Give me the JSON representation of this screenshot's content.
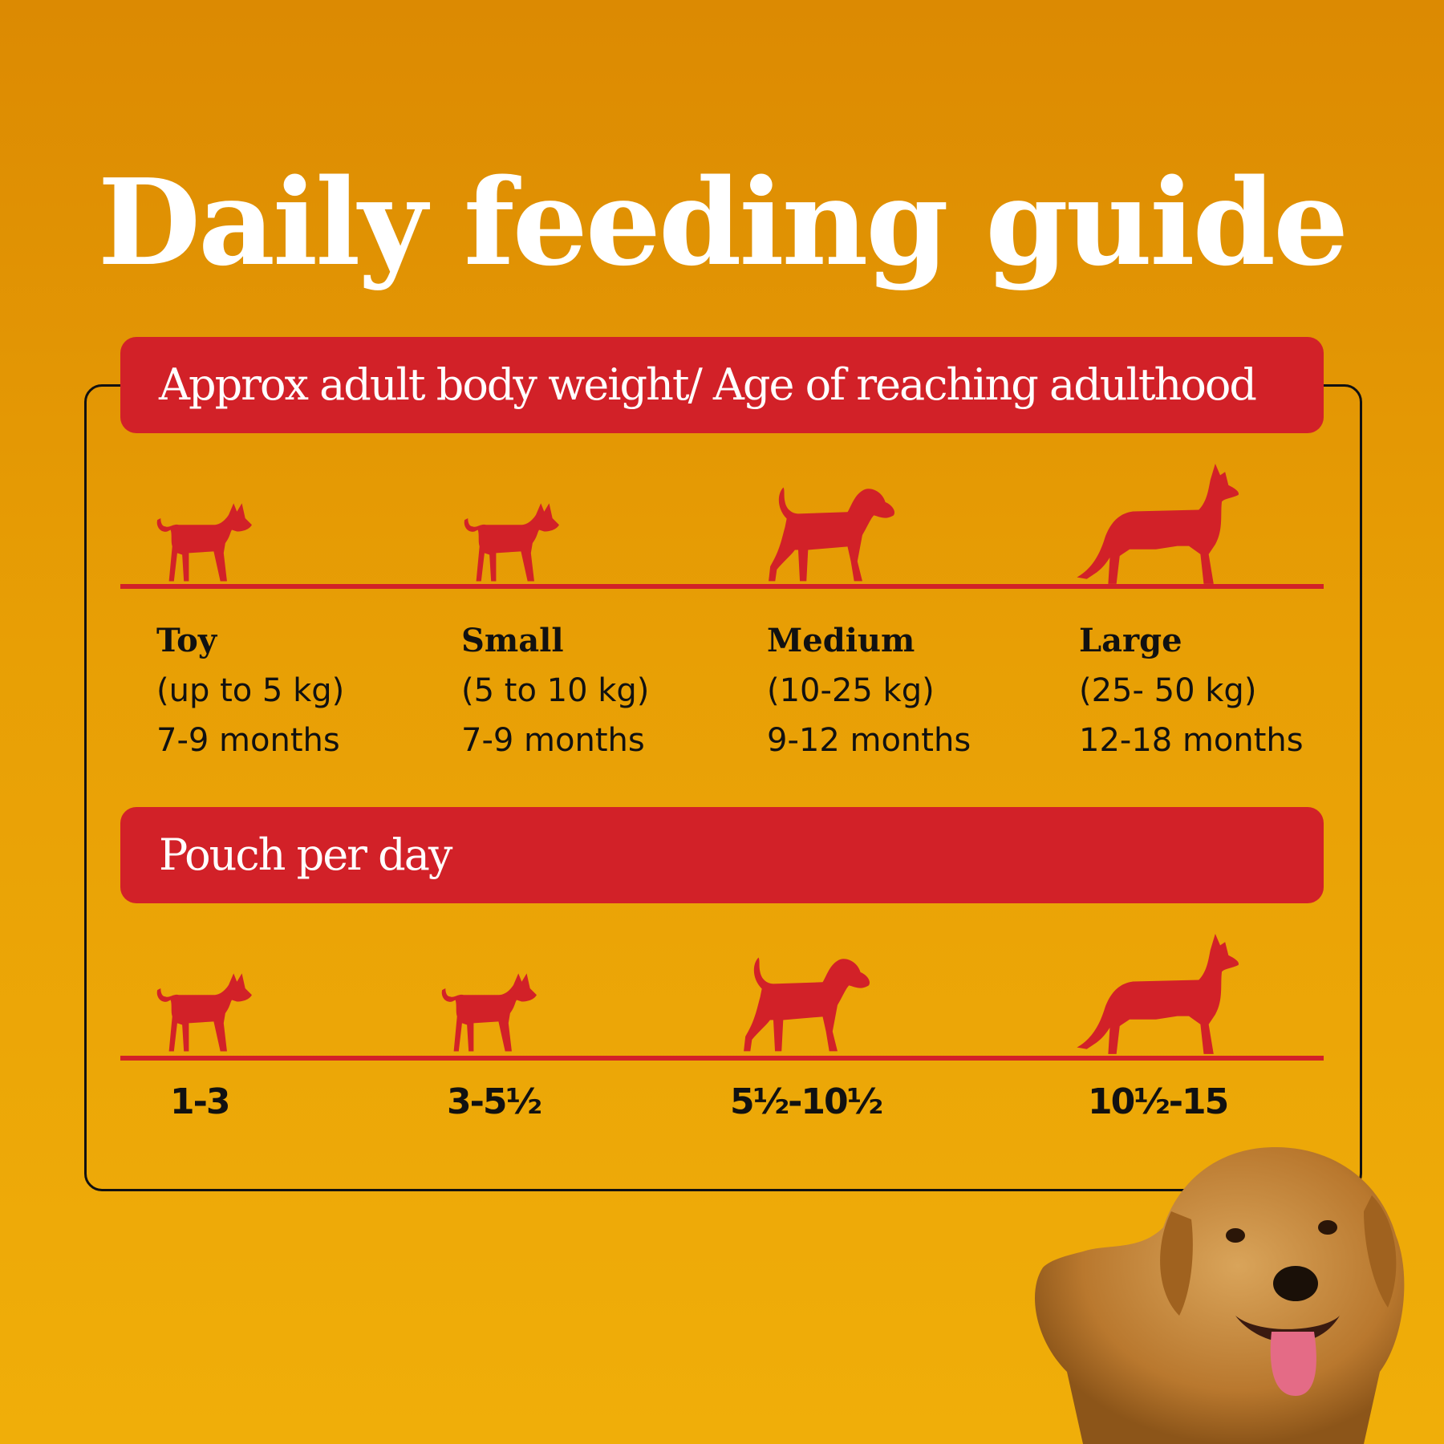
{
  "title": "Daily feeding guide",
  "section1": {
    "heading": "Approx adult body weight/ Age of reaching adulthood"
  },
  "section2": {
    "heading": "Pouch per day"
  },
  "sizes": [
    {
      "name": "Toy",
      "weight": "(up to 5 kg)",
      "age": "7-9 months",
      "pouches": "1-3",
      "icon": "toy-dog-silhouette-icon"
    },
    {
      "name": "Small",
      "weight": "(5 to 10 kg)",
      "age": "7-9 months",
      "pouches": "3-5½",
      "icon": "small-dog-silhouette-icon"
    },
    {
      "name": "Medium",
      "weight": "(10-25 kg)",
      "age": "9-12 months",
      "pouches": "5½-10½",
      "icon": "medium-dog-silhouette-icon"
    },
    {
      "name": "Large",
      "weight": "(25- 50 kg)",
      "age": "12-18 months",
      "pouches": "10½-15",
      "icon": "large-dog-silhouette-icon"
    }
  ],
  "colors": {
    "accent": "#d22128",
    "background_top": "#dc8a02",
    "background_bottom": "#f0ae09",
    "text": "#111111"
  }
}
